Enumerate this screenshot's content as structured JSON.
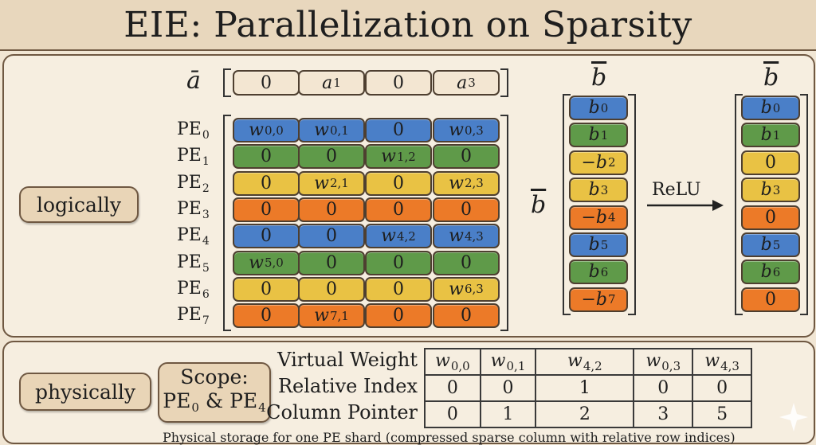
{
  "title": "EIE: Parallelization on Sparsity",
  "logical": {
    "pill_label": "logically",
    "a_vector": {
      "label": "ā",
      "cells": [
        {
          "text": "0",
          "sub": ""
        },
        {
          "text": "a",
          "sub": "1"
        },
        {
          "text": "0",
          "sub": ""
        },
        {
          "text": "a",
          "sub": "3"
        }
      ]
    },
    "pe_rows": [
      {
        "label": "PE",
        "sub": "0",
        "color": "#4a7fc8",
        "cells": [
          {
            "t": "w",
            "s": "0,0"
          },
          {
            "t": "w",
            "s": "0,1"
          },
          {
            "t": "0",
            "s": ""
          },
          {
            "t": "w",
            "s": "0,3"
          }
        ]
      },
      {
        "label": "PE",
        "sub": "1",
        "color": "#5f9a49",
        "cells": [
          {
            "t": "0",
            "s": ""
          },
          {
            "t": "0",
            "s": ""
          },
          {
            "t": "w",
            "s": "1,2"
          },
          {
            "t": "0",
            "s": ""
          }
        ]
      },
      {
        "label": "PE",
        "sub": "2",
        "color": "#e9c244",
        "cells": [
          {
            "t": "0",
            "s": ""
          },
          {
            "t": "w",
            "s": "2,1"
          },
          {
            "t": "0",
            "s": ""
          },
          {
            "t": "w",
            "s": "2,3"
          }
        ]
      },
      {
        "label": "PE",
        "sub": "3",
        "color": "#ec7a28",
        "cells": [
          {
            "t": "0",
            "s": ""
          },
          {
            "t": "0",
            "s": ""
          },
          {
            "t": "0",
            "s": ""
          },
          {
            "t": "0",
            "s": ""
          }
        ]
      },
      {
        "label": "PE",
        "sub": "4",
        "color": "#4a7fc8",
        "cells": [
          {
            "t": "0",
            "s": ""
          },
          {
            "t": "0",
            "s": ""
          },
          {
            "t": "w",
            "s": "4,2"
          },
          {
            "t": "w",
            "s": "4,3"
          }
        ]
      },
      {
        "label": "PE",
        "sub": "5",
        "color": "#5f9a49",
        "cells": [
          {
            "t": "w",
            "s": "5,0"
          },
          {
            "t": "0",
            "s": ""
          },
          {
            "t": "0",
            "s": ""
          },
          {
            "t": "0",
            "s": ""
          }
        ]
      },
      {
        "label": "PE",
        "sub": "6",
        "color": "#e9c244",
        "cells": [
          {
            "t": "0",
            "s": ""
          },
          {
            "t": "0",
            "s": ""
          },
          {
            "t": "0",
            "s": ""
          },
          {
            "t": "w",
            "s": "6,3"
          }
        ]
      },
      {
        "label": "PE",
        "sub": "7",
        "color": "#ec7a28",
        "cells": [
          {
            "t": "0",
            "s": ""
          },
          {
            "t": "w",
            "s": "7,1"
          },
          {
            "t": "0",
            "s": ""
          },
          {
            "t": "0",
            "s": ""
          }
        ]
      }
    ],
    "b_label": "b",
    "b_side_label": "b",
    "b_vector": [
      {
        "t": "b",
        "s": "0",
        "color": "#4a7fc8"
      },
      {
        "t": "b",
        "s": "1",
        "color": "#5f9a49"
      },
      {
        "t": "−b",
        "s": "2",
        "color": "#e9c244"
      },
      {
        "t": "b",
        "s": "3",
        "color": "#e9c244"
      },
      {
        "t": "−b",
        "s": "4",
        "color": "#ec7a28"
      },
      {
        "t": "b",
        "s": "5",
        "color": "#4a7fc8"
      },
      {
        "t": "b",
        "s": "6",
        "color": "#5f9a49"
      },
      {
        "t": "−b",
        "s": "7",
        "color": "#ec7a28"
      }
    ],
    "relu_label": "ReLU",
    "b_out_label": "b",
    "b_out_vector": [
      {
        "t": "b",
        "s": "0",
        "color": "#4a7fc8"
      },
      {
        "t": "b",
        "s": "1",
        "color": "#5f9a49"
      },
      {
        "t": "0",
        "s": "",
        "color": "#e9c244"
      },
      {
        "t": "b",
        "s": "3",
        "color": "#e9c244"
      },
      {
        "t": "0",
        "s": "",
        "color": "#ec7a28"
      },
      {
        "t": "b",
        "s": "5",
        "color": "#4a7fc8"
      },
      {
        "t": "b",
        "s": "6",
        "color": "#5f9a49"
      },
      {
        "t": "0",
        "s": "",
        "color": "#ec7a28"
      }
    ]
  },
  "physical": {
    "pill_label": "physically",
    "scope_line1": "Scope:",
    "scope_line2_a": "PE",
    "scope_line2_a_sub": "0",
    "scope_line2_mid": " & PE",
    "scope_line2_b_sub": "4",
    "row_labels": [
      "Virtual Weight",
      "Relative Index",
      "Column Pointer"
    ],
    "virtual_weight": [
      {
        "t": "w",
        "s": "0,0"
      },
      {
        "t": "w",
        "s": "0,1"
      },
      {
        "t": "w",
        "s": "4,2"
      },
      {
        "t": "w",
        "s": "0,3"
      },
      {
        "t": "w",
        "s": "4,3"
      }
    ],
    "relative_index": [
      "0",
      "0",
      "1",
      "0",
      "0"
    ],
    "column_pointer": [
      "0",
      "1",
      "2",
      "3",
      "5"
    ],
    "caption": "Physical storage for one PE shard (compressed sparse column with relative row indices)"
  }
}
